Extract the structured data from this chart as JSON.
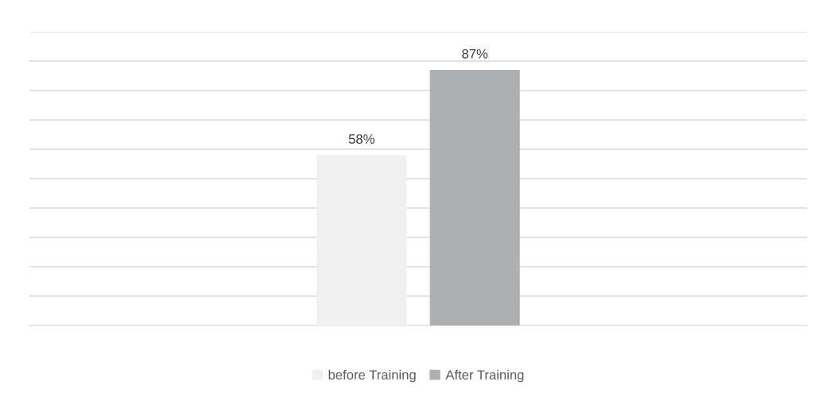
{
  "chart_data": {
    "type": "bar",
    "categories": [
      null
    ],
    "series": [
      {
        "name": "before Training",
        "color": "#f0f0f0",
        "values": [
          58
        ],
        "value_labels": [
          "58%"
        ]
      },
      {
        "name": "After Training",
        "color": "#adafb1",
        "values": [
          87
        ],
        "value_labels": [
          "87%"
        ]
      }
    ],
    "ylim": [
      0,
      100
    ],
    "yticks": [
      {
        "value": 0,
        "label": null
      },
      {
        "value": 10,
        "label": null
      },
      {
        "value": 20,
        "label": null
      },
      {
        "value": 30,
        "label": null
      },
      {
        "value": 40,
        "label": null
      },
      {
        "value": 50,
        "label": null
      },
      {
        "value": 60,
        "label": null
      },
      {
        "value": 70,
        "label": null
      },
      {
        "value": 80,
        "label": null
      },
      {
        "value": 90,
        "label": null
      },
      {
        "value": 100,
        "label": null
      }
    ],
    "grid": "y",
    "legend": "bottom"
  }
}
